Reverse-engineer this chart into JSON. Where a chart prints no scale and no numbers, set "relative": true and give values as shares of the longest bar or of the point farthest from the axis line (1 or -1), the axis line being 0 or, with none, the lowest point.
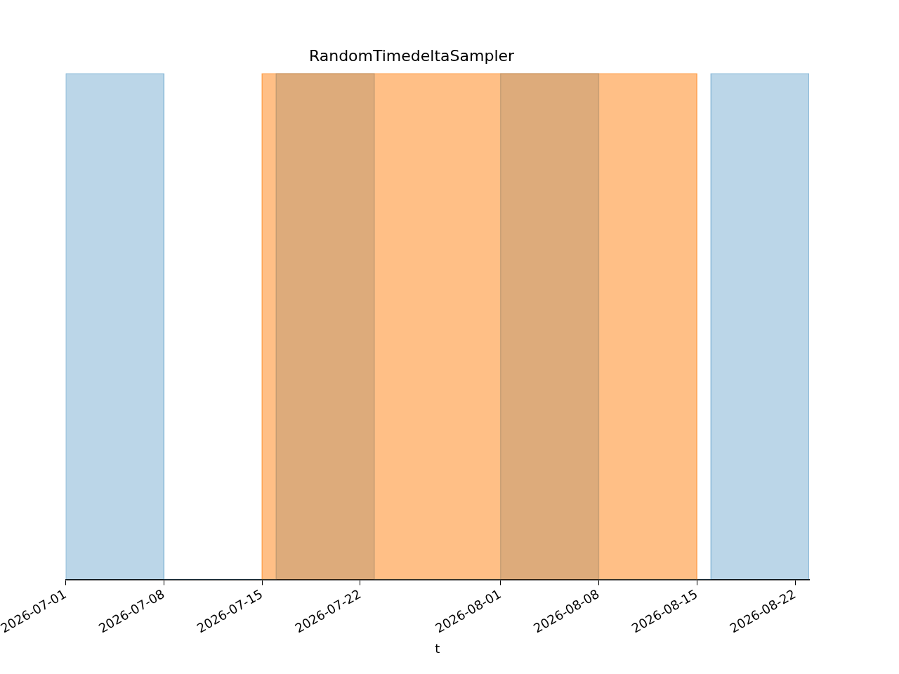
{
  "chart_data": {
    "type": "area",
    "title": "RandomTimedeltaSampler",
    "xlabel": "t",
    "relative": true,
    "xlim": [
      "2026-07-01",
      "2026-08-23"
    ],
    "xticks": [
      "2026-07-01",
      "2026-07-08",
      "2026-07-15",
      "2026-07-22",
      "2026-08-01",
      "2026-08-08",
      "2026-08-15",
      "2026-08-22"
    ],
    "tick_labels": "x",
    "series": [
      {
        "color": "#1f77b4",
        "x": [
          "2026-07-01",
          "2026-07-01",
          "2026-07-08",
          "2026-07-08",
          "2026-07-16",
          "2026-07-16",
          "2026-07-23",
          "2026-07-23",
          "2026-08-01",
          "2026-08-01",
          "2026-08-08",
          "2026-08-08",
          "2026-08-16",
          "2026-08-16",
          "2026-08-23",
          "2026-08-23"
        ],
        "values": [
          0,
          1,
          1,
          0,
          0,
          1,
          1,
          0,
          0,
          1,
          1,
          0,
          0,
          1,
          1,
          0
        ]
      },
      {
        "color": "#ff7f0e",
        "x": [
          "2026-07-15",
          "2026-07-15",
          "2026-08-15",
          "2026-08-15"
        ],
        "values": [
          0,
          1,
          1,
          0
        ]
      }
    ]
  }
}
